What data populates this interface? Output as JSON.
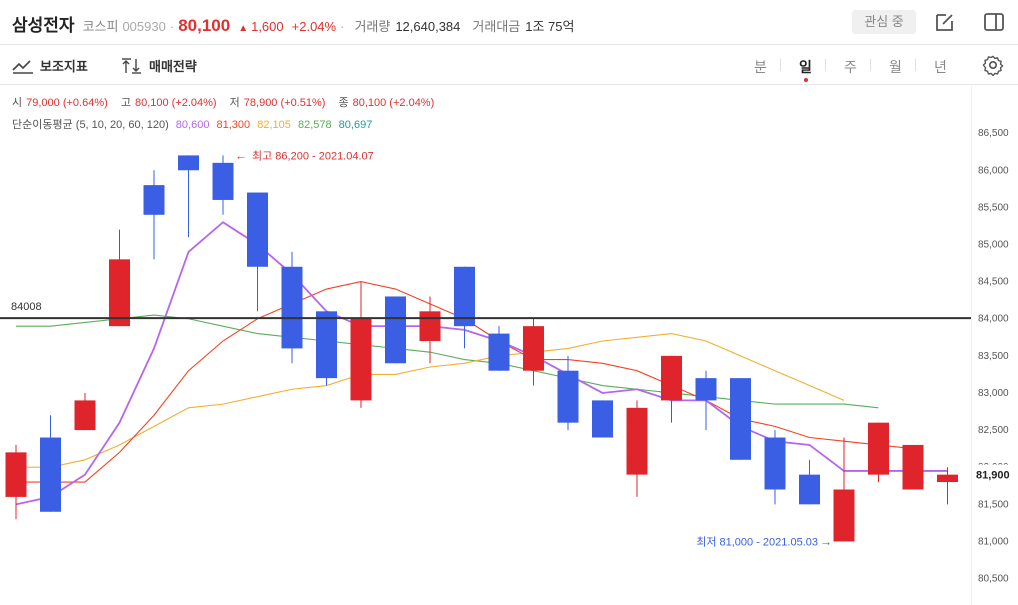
{
  "header": {
    "name": "삼성전자",
    "market": "코스피",
    "code": "005930",
    "price": "80,100",
    "change_arrow": "▲",
    "change": "1,600",
    "change_pct": "+2.04%",
    "volume_label": "거래량",
    "volume": "12,640,384",
    "amount_label": "거래대금",
    "amount": "1조 75억",
    "interest_label": "관심 중"
  },
  "toolbar": {
    "indicator_label": "보조지표",
    "strategy_label": "매매전략",
    "periods": [
      "분",
      "일",
      "주",
      "월",
      "년"
    ],
    "active_period": "일"
  },
  "ohlc_info": {
    "open_label": "시",
    "open": "79,000 (+0.64%)",
    "high_label": "고",
    "high": "80,100 (+2.04%)",
    "low_label": "저",
    "low": "78,900 (+0.51%)",
    "close_label": "종",
    "close": "80,100 (+2.04%)"
  },
  "ma_info": {
    "label": "단순이동평균 (5, 10, 20, 60, 120)",
    "values": [
      "80,600",
      "81,300",
      "82,105",
      "82,578",
      "80,697"
    ]
  },
  "colors": {
    "up": "#e0242b",
    "down": "#3a5fe5",
    "ma5": "#b466ee",
    "ma10": "#ef4423",
    "ma20": "#f0b030",
    "ma60": "#5aae5a",
    "ma120": "#1a9e9e"
  },
  "chart_data": {
    "type": "candlestick",
    "title": "",
    "ylim": [
      80400,
      86650
    ],
    "yticks": [
      "80,500",
      "81,000",
      "81,500",
      "82,000",
      "82,500",
      "83,000",
      "83,500",
      "84,000",
      "84,500",
      "85,000",
      "85,500",
      "86,000",
      "86,500"
    ],
    "hline": {
      "value": 84008,
      "label": "84008"
    },
    "last_price_label": "81,900",
    "max_annotation": "최고 86,200 - 2021.04.07",
    "min_annotation": "최저 81,000 - 2021.05.03",
    "candles": [
      {
        "o": 81600,
        "h": 82300,
        "l": 81300,
        "c": 82200
      },
      {
        "o": 82400,
        "h": 82700,
        "l": 81400,
        "c": 81400
      },
      {
        "o": 82500,
        "h": 83000,
        "l": 82500,
        "c": 82900
      },
      {
        "o": 83900,
        "h": 85200,
        "l": 83900,
        "c": 84800
      },
      {
        "o": 85800,
        "h": 86000,
        "l": 84800,
        "c": 85400
      },
      {
        "o": 86200,
        "h": 86200,
        "l": 85100,
        "c": 86000
      },
      {
        "o": 86100,
        "h": 86200,
        "l": 85400,
        "c": 85600
      },
      {
        "o": 85700,
        "h": 85700,
        "l": 84100,
        "c": 84700
      },
      {
        "o": 84700,
        "h": 84900,
        "l": 83400,
        "c": 83600
      },
      {
        "o": 84100,
        "h": 84100,
        "l": 83100,
        "c": 83200
      },
      {
        "o": 82900,
        "h": 84500,
        "l": 82800,
        "c": 84000
      },
      {
        "o": 84300,
        "h": 84300,
        "l": 83400,
        "c": 83400
      },
      {
        "o": 83700,
        "h": 84300,
        "l": 83400,
        "c": 84100
      },
      {
        "o": 84700,
        "h": 84700,
        "l": 83600,
        "c": 83900
      },
      {
        "o": 83800,
        "h": 83900,
        "l": 83300,
        "c": 83300
      },
      {
        "o": 83300,
        "h": 84000,
        "l": 83100,
        "c": 83900
      },
      {
        "o": 83300,
        "h": 83500,
        "l": 82500,
        "c": 82600
      },
      {
        "o": 82900,
        "h": 82900,
        "l": 82400,
        "c": 82400
      },
      {
        "o": 81900,
        "h": 82900,
        "l": 81600,
        "c": 82800
      },
      {
        "o": 82900,
        "h": 83500,
        "l": 82600,
        "c": 83500
      },
      {
        "o": 83200,
        "h": 83300,
        "l": 82500,
        "c": 82900
      },
      {
        "o": 83200,
        "h": 83200,
        "l": 82100,
        "c": 82100
      },
      {
        "o": 82400,
        "h": 82500,
        "l": 81500,
        "c": 81700
      },
      {
        "o": 81900,
        "h": 82100,
        "l": 81500,
        "c": 81500
      },
      {
        "o": 81000,
        "h": 82400,
        "l": 81000,
        "c": 81700
      },
      {
        "o": 81900,
        "h": 82600,
        "l": 81800,
        "c": 82600
      },
      {
        "o": 81700,
        "h": 82300,
        "l": 81700,
        "c": 82300
      },
      {
        "o": 81800,
        "h": 82000,
        "l": 81500,
        "c": 81900
      }
    ],
    "ma5": [
      81500,
      81600,
      81900,
      82600,
      83600,
      84900,
      85300,
      85000,
      84600,
      84100,
      83900,
      83900,
      83900,
      83850,
      83700,
      83500,
      83250,
      83000,
      83050,
      82900,
      82900,
      82550,
      82350,
      82300,
      81950,
      81950,
      81950,
      81950
    ],
    "ma10": [
      81800,
      81800,
      81800,
      82200,
      82700,
      83300,
      83700,
      84000,
      84200,
      84400,
      84500,
      84400,
      84200,
      84000,
      83700,
      83450,
      83450,
      83400,
      83300,
      83100,
      82900,
      82650,
      82550,
      82400,
      82350,
      82300,
      82250
    ],
    "ma20": [
      82000,
      82000,
      82100,
      82300,
      82550,
      82800,
      82850,
      82950,
      83050,
      83100,
      83250,
      83250,
      83350,
      83400,
      83500,
      83550,
      83600,
      83700,
      83750,
      83800,
      83700,
      83500,
      83300,
      83100,
      82900
    ],
    "ma60": [
      83900,
      83900,
      83950,
      84000,
      84050,
      84000,
      83900,
      83800,
      83750,
      83700,
      83650,
      83600,
      83550,
      83450,
      83400,
      83300,
      83200,
      83100,
      83050,
      83000,
      82950,
      82900,
      82850,
      82850,
      82850,
      82800
    ],
    "ma_start": {
      "ma5": 0,
      "ma10": 0,
      "ma20": 0,
      "ma60": 0
    }
  }
}
